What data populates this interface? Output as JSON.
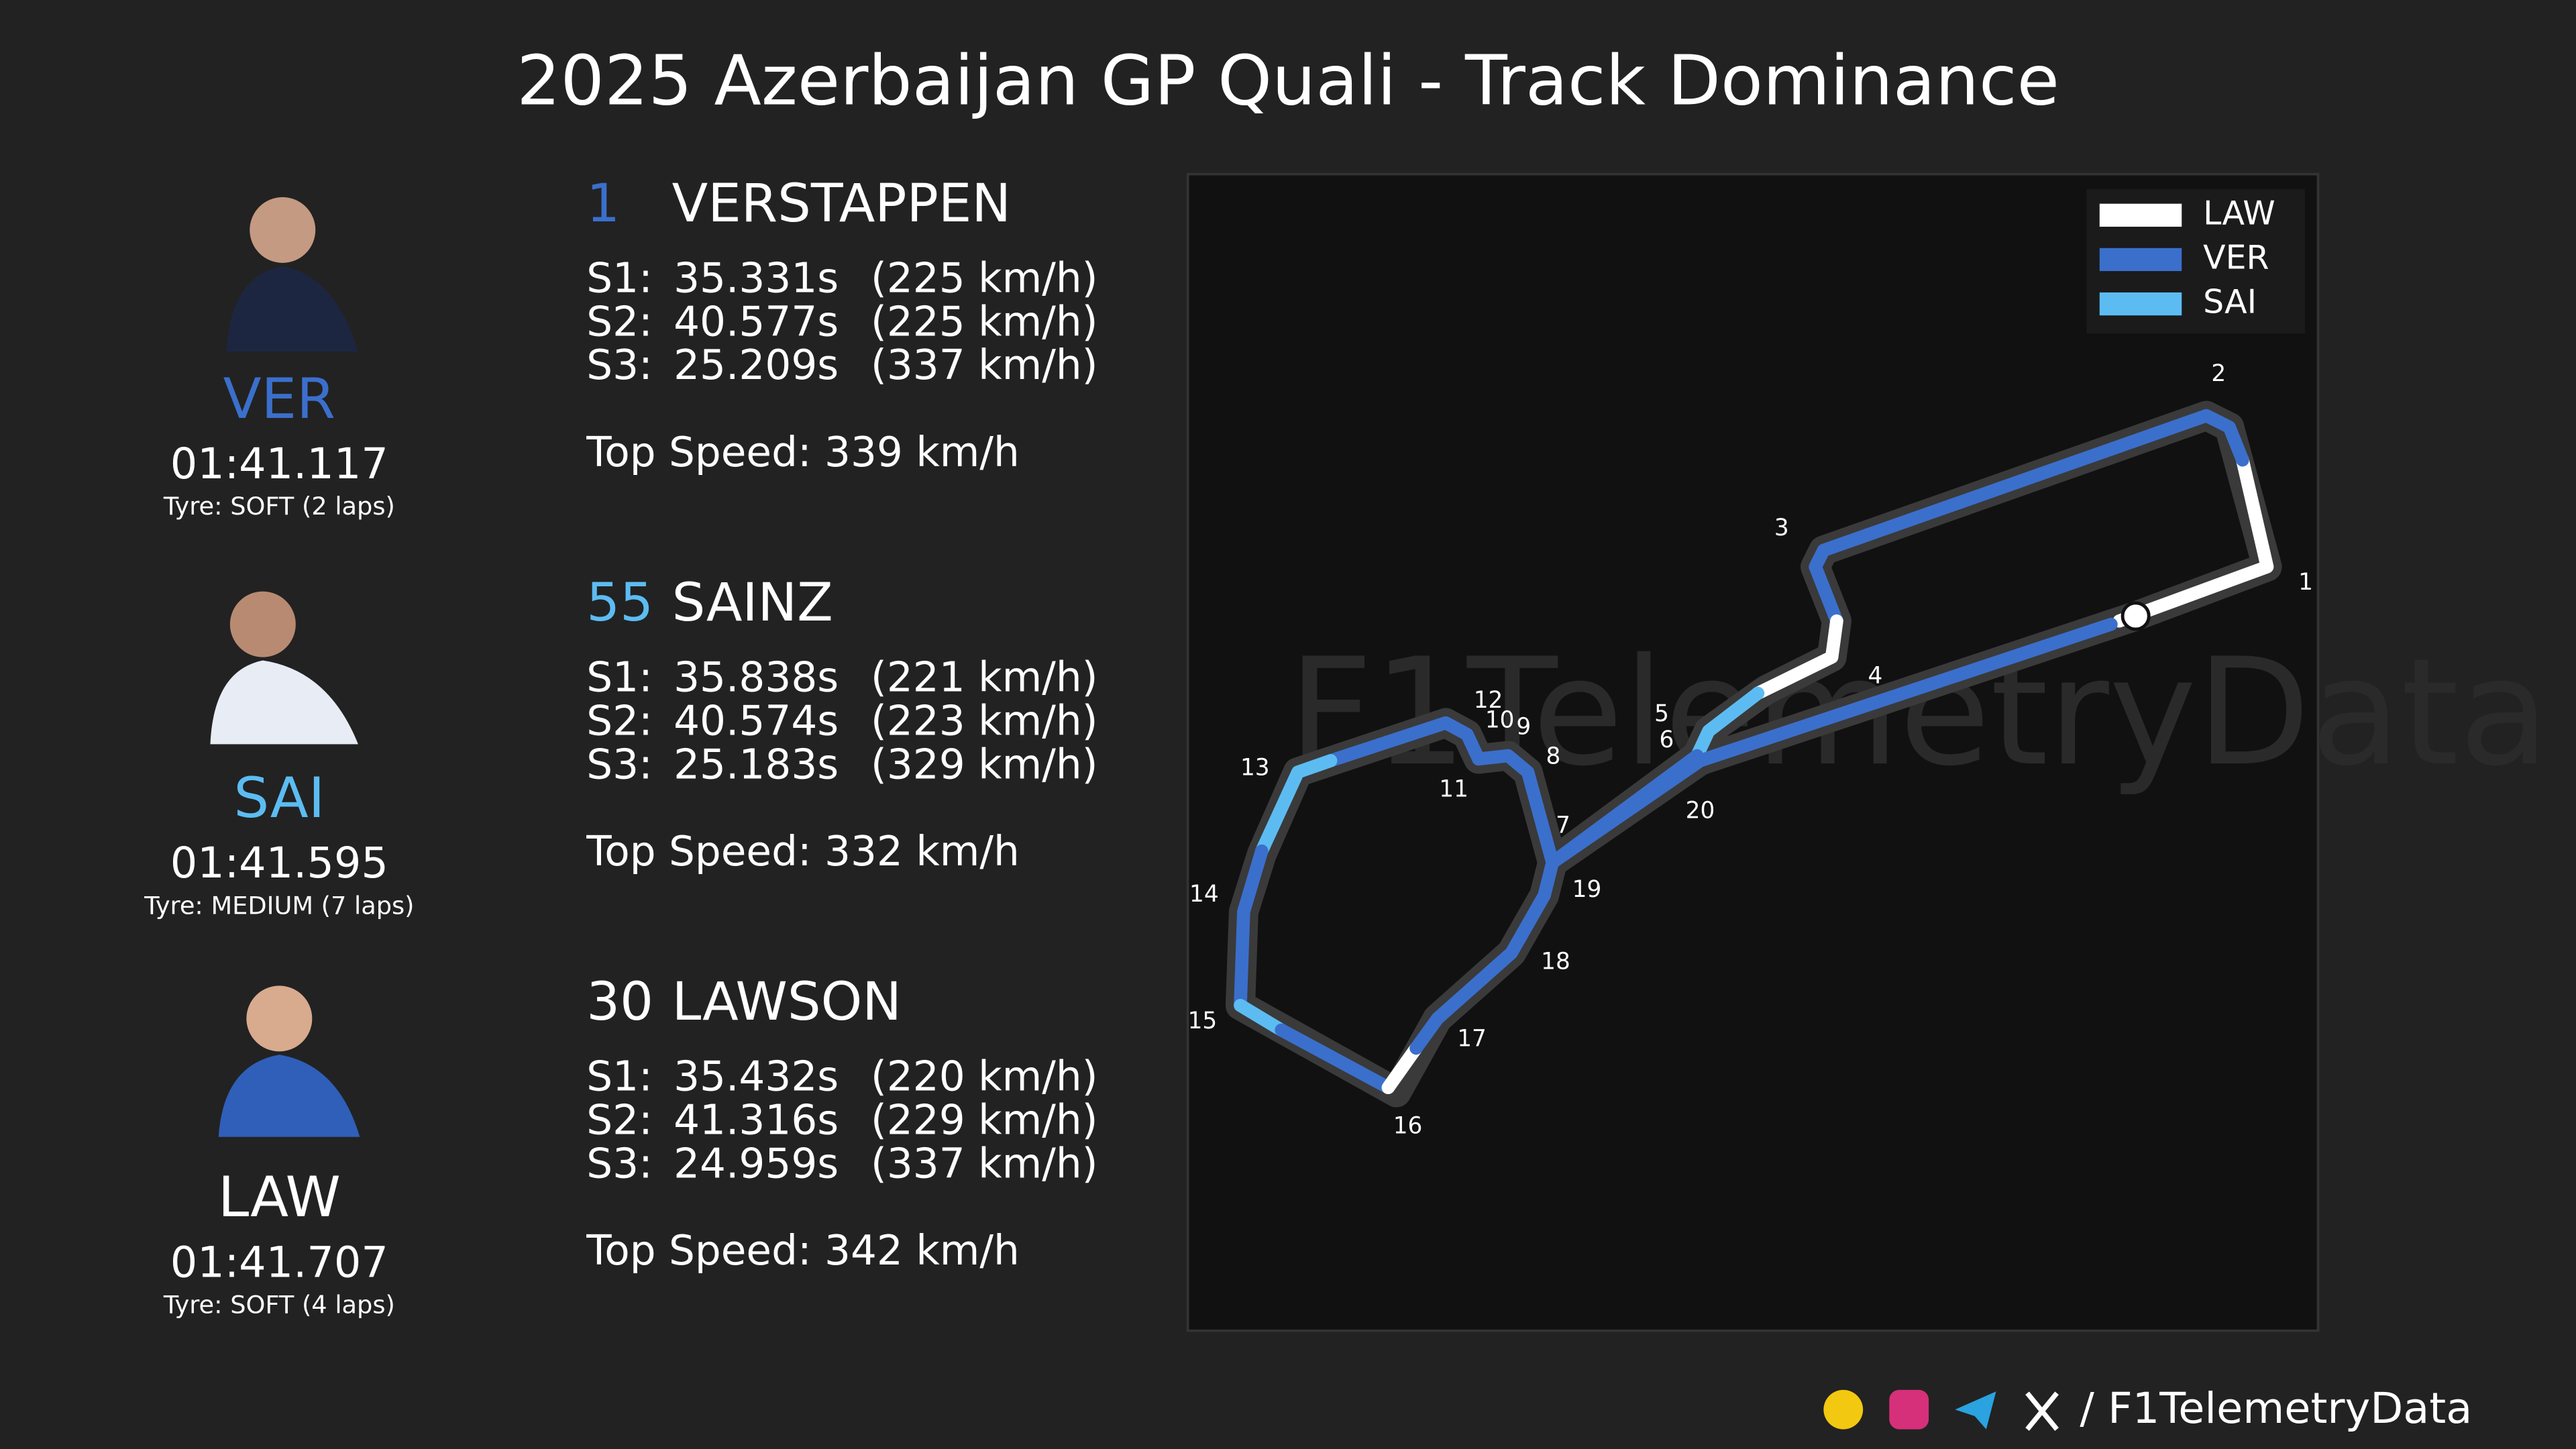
{
  "header": {
    "title": "2025 Azerbaijan GP Quali - Track Dominance"
  },
  "drivers": [
    {
      "code": "VER",
      "number": "1",
      "name": "VERSTAPPEN",
      "color": "#3b6fcc",
      "lap_time": "01:41.117",
      "tyre": "Tyre: SOFT (2 laps)",
      "sectors": [
        {
          "label": "S1:",
          "time": "35.331s",
          "speed": "(225 km/h)"
        },
        {
          "label": "S2:",
          "time": "40.577s",
          "speed": "(225 km/h)"
        },
        {
          "label": "S3:",
          "time": "25.209s",
          "speed": "(337 km/h)"
        }
      ],
      "top_speed": "Top Speed: 339 km/h"
    },
    {
      "code": "SAI",
      "number": "55",
      "name": "SAINZ",
      "color": "#5cbcf2",
      "lap_time": "01:41.595",
      "tyre": "Tyre: MEDIUM (7 laps)",
      "sectors": [
        {
          "label": "S1:",
          "time": "35.838s",
          "speed": "(221 km/h)"
        },
        {
          "label": "S2:",
          "time": "40.574s",
          "speed": "(223 km/h)"
        },
        {
          "label": "S3:",
          "time": "25.183s",
          "speed": "(329 km/h)"
        }
      ],
      "top_speed": "Top Speed: 332 km/h"
    },
    {
      "code": "LAW",
      "number": "30",
      "name": "LAWSON",
      "color": "#ffffff",
      "lap_time": "01:41.707",
      "tyre": "Tyre: SOFT (4 laps)",
      "sectors": [
        {
          "label": "S1:",
          "time": "35.432s",
          "speed": "(220 km/h)"
        },
        {
          "label": "S2:",
          "time": "41.316s",
          "speed": "(229 km/h)"
        },
        {
          "label": "S3:",
          "time": "24.959s",
          "speed": "(337 km/h)"
        }
      ],
      "top_speed": "Top Speed: 342 km/h"
    }
  ],
  "map": {
    "watermark": "F1TelemetryData",
    "legend": [
      {
        "name": "LAW",
        "color": "#ffffff"
      },
      {
        "name": "VER",
        "color": "#3b6fcc"
      },
      {
        "name": "SAI",
        "color": "#5cbcf2"
      }
    ],
    "corners": [
      "1",
      "2",
      "3",
      "4",
      "5",
      "6",
      "7",
      "8",
      "9",
      "10",
      "11",
      "12",
      "13",
      "14",
      "15",
      "16",
      "17",
      "18",
      "19",
      "20"
    ]
  },
  "footer": {
    "handle": "/ F1TelemetryData"
  }
}
